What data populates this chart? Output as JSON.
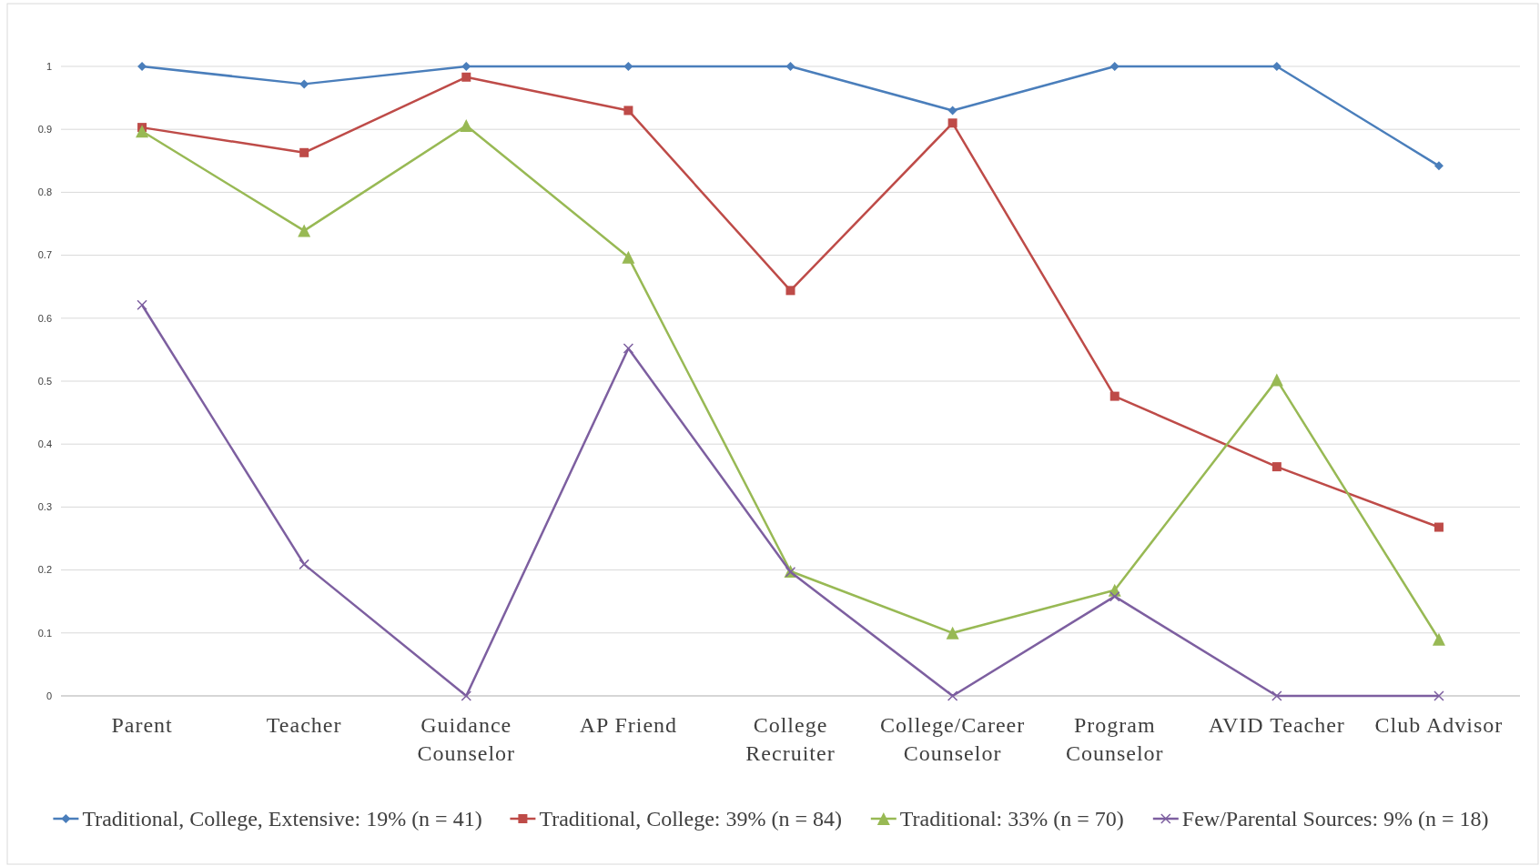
{
  "chart_data": {
    "type": "line",
    "categories": [
      "Parent",
      "Teacher",
      "Guidance Counselor",
      "AP Friend",
      "College Recruiter",
      "College/Career Counselor",
      "Program Counselor",
      "AVID Teacher",
      "Club Advisor"
    ],
    "series": [
      {
        "name": "Traditional, College, Extensive: 19% (n = 41)",
        "color": "#4a7ebb",
        "marker": "diamond",
        "values": [
          1,
          0.972,
          1,
          1,
          1,
          0.93,
          1,
          1,
          0.842
        ]
      },
      {
        "name": "Traditional, College: 39% (n = 84)",
        "color": "#be4b48",
        "marker": "square",
        "values": [
          0.903,
          0.863,
          0.983,
          0.93,
          0.644,
          0.91,
          0.476,
          0.364,
          0.268
        ]
      },
      {
        "name": "Traditional: 33% (n = 70)",
        "color": "#98b954",
        "marker": "triangle",
        "values": [
          0.897,
          0.739,
          0.906,
          0.697,
          0.198,
          0.1,
          0.168,
          0.502,
          0.09
        ]
      },
      {
        "name": "Few/Parental Sources: 9% (n = 18)",
        "color": "#7d5fa0",
        "marker": "cross",
        "values": [
          0.621,
          0.209,
          0,
          0.552,
          0.197,
          0,
          0.158,
          0,
          0
        ]
      }
    ],
    "ylim": [
      0,
      1
    ],
    "yticks": [
      0,
      0.1,
      0.2,
      0.3,
      0.4,
      0.5,
      0.6,
      0.7,
      0.8,
      0.9,
      1
    ],
    "grid": "y",
    "legend": "bottom",
    "line_style": "solid"
  }
}
